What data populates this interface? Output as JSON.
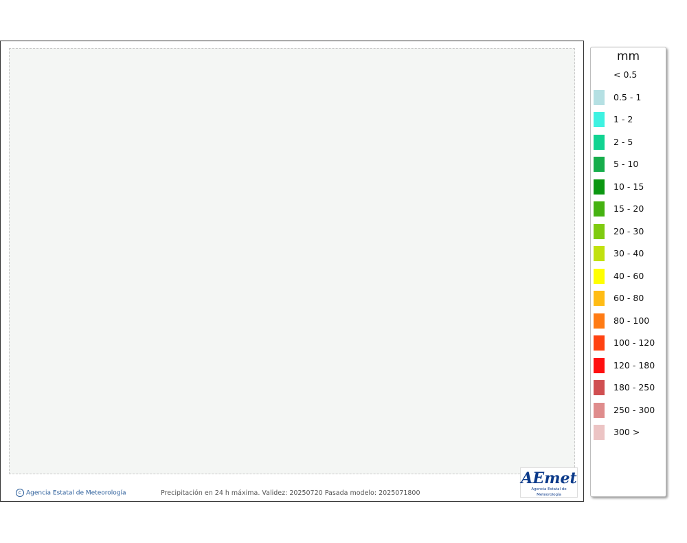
{
  "map": {
    "caption": "Precipitación en 24 h máxima. Validez: 20250720 Pasada modelo: 2025071800",
    "credit": "Agencia Estatal de Meteorología",
    "logo_mark": "AEmet",
    "logo_sub": "Agencia Estatal de Meteorología"
  },
  "legend": {
    "title": "mm",
    "items": [
      {
        "label": "< 0.5",
        "color": "#ffffff"
      },
      {
        "label": "0.5 - 1",
        "color": "#b5e0e3"
      },
      {
        "label": "1 - 2",
        "color": "#3ef2e1"
      },
      {
        "label": "2 - 5",
        "color": "#11d391"
      },
      {
        "label": "5 - 10",
        "color": "#16ad4b"
      },
      {
        "label": "10 - 15",
        "color": "#0b9711"
      },
      {
        "label": "15 - 20",
        "color": "#45b211"
      },
      {
        "label": "20 - 30",
        "color": "#7fcb10"
      },
      {
        "label": "30 - 40",
        "color": "#c1e10e"
      },
      {
        "label": "40 - 60",
        "color": "#ffff00"
      },
      {
        "label": "60 - 80",
        "color": "#ffbc15"
      },
      {
        "label": "80 - 100",
        "color": "#ff7b14"
      },
      {
        "label": "100 - 120",
        "color": "#ff4211"
      },
      {
        "label": "120 - 180",
        "color": "#ff0f0f"
      },
      {
        "label": "180 - 250",
        "color": "#d04f51"
      },
      {
        "label": "250 - 300",
        "color": "#df8c8c"
      },
      {
        "label": "300 >",
        "color": "#ecc4c4"
      }
    ]
  }
}
